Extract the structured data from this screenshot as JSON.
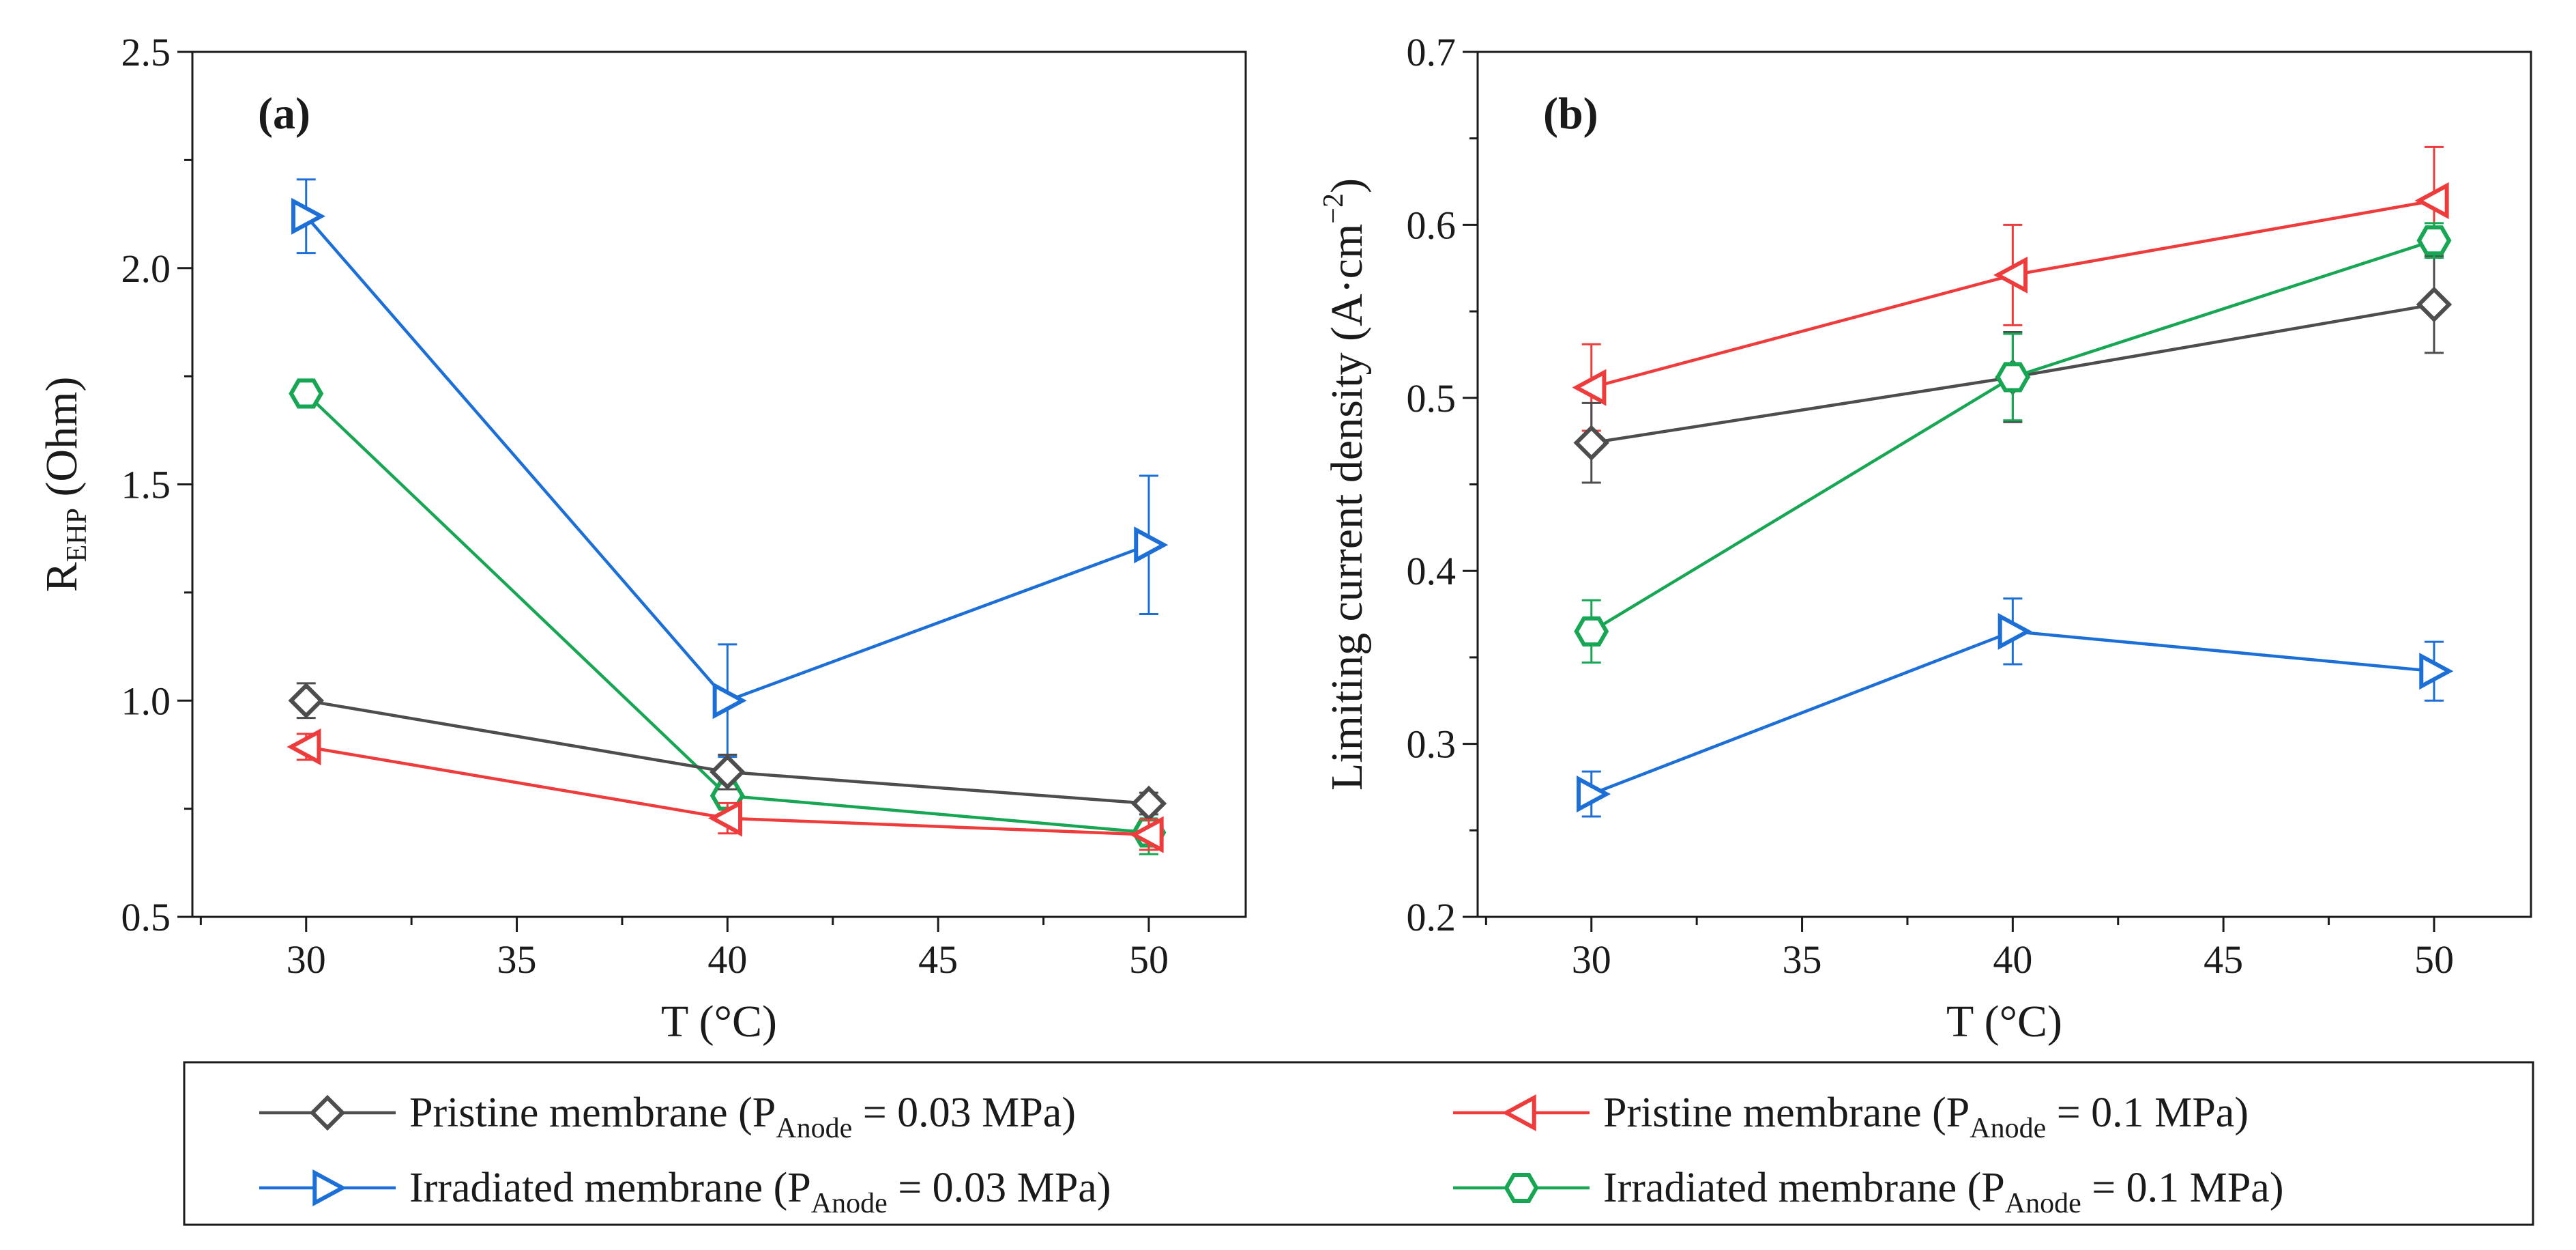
{
  "legend": {
    "entries": [
      {
        "key": "pristine_003",
        "prefix": "Pristine membrane (P",
        "sub": "Anode",
        "suffix": " = 0.03 MPa)",
        "color": "#4d4d4d",
        "marker": "diamond"
      },
      {
        "key": "pristine_01",
        "prefix": "Pristine membrane (P",
        "sub": "Anode",
        "suffix": " = 0.1 MPa)",
        "color": "#ee3b3b",
        "marker": "triangle-left"
      },
      {
        "key": "irradiated_003",
        "prefix": "Irradiated membrane (P",
        "sub": "Anode",
        "suffix": " = 0.03 MPa)",
        "color": "#1b6fd6",
        "marker": "triangle-right"
      },
      {
        "key": "irradiated_01",
        "prefix": "Irradiated membrane (P",
        "sub": "Anode",
        "suffix": " = 0.1 MPa)",
        "color": "#17a653",
        "marker": "hexagon"
      }
    ]
  },
  "chart_data": [
    {
      "type": "line",
      "panel_label": "(a)",
      "xlabel": "T (°C)",
      "ylabel_main": "R",
      "ylabel_sub": "EHP",
      "ylabel_suffix": " (Ohm)",
      "xlim": [
        27.3,
        52.3
      ],
      "ylim": [
        0.5,
        2.5
      ],
      "xticks": [
        30,
        35,
        40,
        45,
        50
      ],
      "xtick_labels": [
        "30",
        "35",
        "40",
        "45",
        "50"
      ],
      "yticks": [
        0.5,
        1.0,
        1.5,
        2.0,
        2.5
      ],
      "ytick_labels": [
        "0.5",
        "1.0",
        "1.5",
        "2.0",
        "2.5"
      ],
      "x": [
        30,
        40,
        50
      ],
      "series": [
        {
          "key": "irradiated_003",
          "values": [
            2.12,
            1.0,
            1.36
          ],
          "errors": [
            0.085,
            0.13,
            0.16
          ]
        },
        {
          "key": "irradiated_01",
          "values": [
            1.71,
            0.78,
            0.695
          ],
          "errors": [
            0.02,
            0.02,
            0.05
          ]
        },
        {
          "key": "pristine_003",
          "values": [
            1.0,
            0.835,
            0.762
          ],
          "errors": [
            0.04,
            0.04,
            0.025
          ]
        },
        {
          "key": "pristine_01",
          "values": [
            0.893,
            0.728,
            0.69
          ],
          "errors": [
            0.03,
            0.035,
            0.035
          ]
        }
      ]
    },
    {
      "type": "line",
      "panel_label": "(b)",
      "xlabel": "T (°C)",
      "ylabel_main": "Limiting current density (A·cm",
      "ylabel_sup": "−2",
      "ylabel_suffix": ")",
      "xlim": [
        27.3,
        52.3
      ],
      "ylim": [
        0.2,
        0.7
      ],
      "xticks": [
        30,
        35,
        40,
        45,
        50
      ],
      "xtick_labels": [
        "30",
        "35",
        "40",
        "45",
        "50"
      ],
      "yticks": [
        0.2,
        0.3,
        0.4,
        0.5,
        0.6,
        0.7
      ],
      "ytick_labels": [
        "0.2",
        "0.3",
        "0.4",
        "0.5",
        "0.6",
        "0.7"
      ],
      "x": [
        30,
        40,
        50
      ],
      "series": [
        {
          "key": "pristine_01",
          "values": [
            0.506,
            0.571,
            0.614
          ],
          "errors": [
            0.025,
            0.029,
            0.031
          ]
        },
        {
          "key": "pristine_003",
          "values": [
            0.474,
            0.512,
            0.554
          ],
          "errors": [
            0.023,
            0.026,
            0.028
          ]
        },
        {
          "key": "irradiated_01",
          "values": [
            0.365,
            0.512,
            0.591
          ],
          "errors": [
            0.018,
            0.025,
            0.01
          ]
        },
        {
          "key": "irradiated_003",
          "values": [
            0.271,
            0.365,
            0.342
          ],
          "errors": [
            0.013,
            0.019,
            0.017
          ]
        }
      ]
    }
  ]
}
